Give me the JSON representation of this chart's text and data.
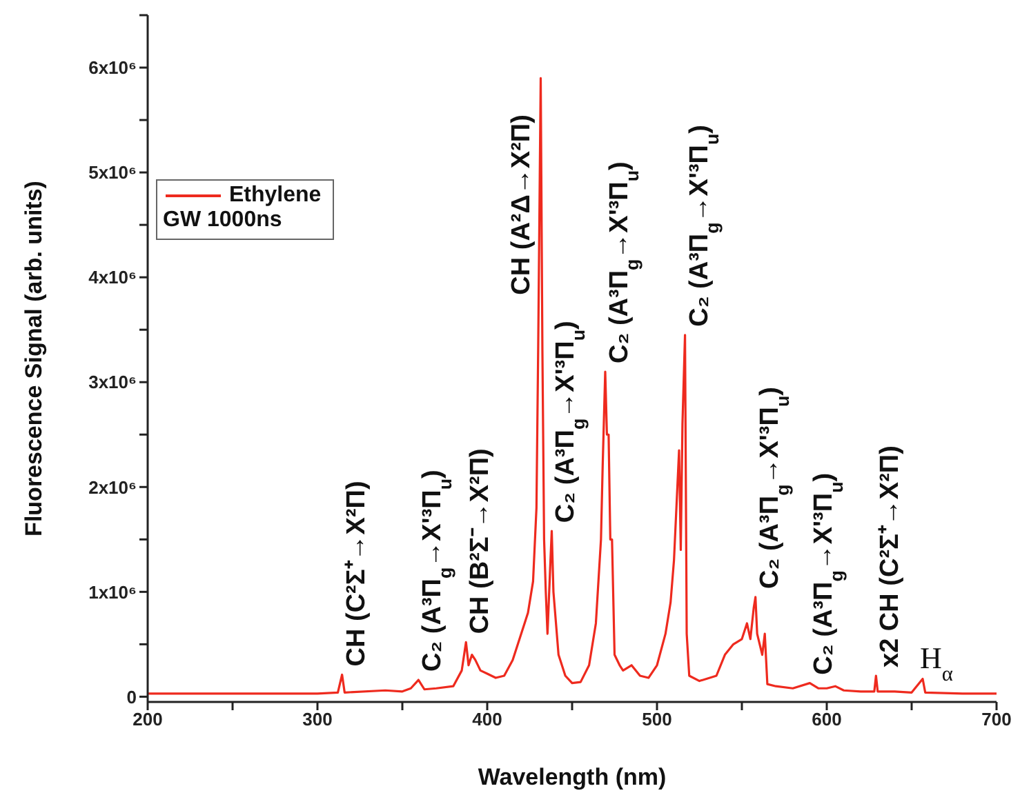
{
  "chart_data": {
    "type": "line",
    "xlabel": "Wavelength (nm)",
    "ylabel": "Fluorescence Signal (arb. units)",
    "legend": "top left",
    "legend_title": "GW 1000ns",
    "xlim": [
      200,
      700
    ],
    "ylim": [
      -50000,
      6500000
    ],
    "xticks": [
      200,
      {
        "value": 250,
        "label": null
      },
      300,
      {
        "value": 350,
        "label": null
      },
      400,
      {
        "value": 450,
        "label": null
      },
      500,
      {
        "value": 550,
        "label": null
      },
      600,
      {
        "value": 650,
        "label": null
      },
      700
    ],
    "yticks": [
      0,
      {
        "value": 500000,
        "label": null
      },
      {
        "value": 1000000,
        "label": "1x10⁶"
      },
      {
        "value": 1500000,
        "label": null
      },
      {
        "value": 2000000,
        "label": "2x10⁶"
      },
      {
        "value": 2500000,
        "label": null
      },
      {
        "value": 3000000,
        "label": "3x10⁶"
      },
      {
        "value": 3500000,
        "label": null
      },
      {
        "value": 4000000,
        "label": "4x10⁶"
      },
      {
        "value": 4500000,
        "label": null
      },
      {
        "value": 5000000,
        "label": "5x10⁶"
      },
      {
        "value": 5500000,
        "label": null
      },
      {
        "value": 6000000,
        "label": "6x10⁶"
      },
      {
        "value": 6500000,
        "label": null
      }
    ],
    "x": [
      200,
      300,
      312,
      314.5,
      316,
      340,
      350,
      355,
      359.5,
      363,
      370,
      380,
      385,
      387.5,
      389,
      391,
      393,
      396,
      400,
      405,
      410,
      415,
      420,
      424,
      427,
      429,
      430,
      431.5,
      432.5,
      433.5,
      434.5,
      435.5,
      437,
      438,
      439,
      442,
      446,
      450,
      455,
      460,
      464,
      467,
      468,
      469.5,
      470.5,
      471.5,
      472.5,
      473.5,
      475,
      478,
      480,
      485,
      490,
      495,
      500,
      505,
      508,
      510,
      512,
      513,
      514,
      515,
      516.5,
      517.5,
      519,
      525,
      535,
      540,
      545,
      550,
      553,
      555,
      557,
      558,
      559,
      562,
      563.5,
      565,
      570,
      580,
      590,
      595,
      600,
      605,
      610,
      620,
      628,
      629,
      630,
      640,
      650,
      656.5,
      658,
      680,
      700
    ],
    "series": [
      {
        "name": "Ethylene",
        "color": "#ee2a1e",
        "values": [
          30000,
          30000,
          40000,
          210000,
          40000,
          60000,
          50000,
          80000,
          160000,
          70000,
          80000,
          100000,
          250000,
          520000,
          300000,
          400000,
          350000,
          250000,
          220000,
          180000,
          200000,
          350000,
          600000,
          800000,
          1100000,
          1800000,
          3300000,
          5900000,
          3300000,
          1500000,
          1000000,
          600000,
          1200000,
          1580000,
          1000000,
          400000,
          200000,
          130000,
          140000,
          300000,
          700000,
          1500000,
          2200000,
          3100000,
          2500000,
          2500000,
          1500000,
          1500000,
          400000,
          300000,
          250000,
          300000,
          200000,
          180000,
          300000,
          600000,
          900000,
          1300000,
          2000000,
          2350000,
          1400000,
          2600000,
          3450000,
          600000,
          200000,
          150000,
          200000,
          400000,
          500000,
          550000,
          700000,
          550000,
          850000,
          950000,
          600000,
          400000,
          600000,
          120000,
          100000,
          80000,
          130000,
          80000,
          80000,
          100000,
          60000,
          50000,
          50000,
          200000,
          50000,
          50000,
          40000,
          170000,
          40000,
          30000,
          30000
        ]
      }
    ],
    "annotations": [
      {
        "text": "CH (C²Σ⁺→X²Π)",
        "x": 314.5,
        "y": 210000
      },
      {
        "text": "C₂ (A³Π$_{g}$→X'³Π$_{u}$)",
        "x": 359.5,
        "y": 160000
      },
      {
        "text": "CH (B²Σ⁻→X²Π)",
        "x": 387.5,
        "y": 520000
      },
      {
        "text": "CH (A²Δ→X²Π)",
        "x": 431.5,
        "y": 5900000
      },
      {
        "text": "C₂ (A³Π$_{g}$→X'³Π$_{u}$)",
        "x": 438,
        "y": 1580000
      },
      {
        "text": "C₂ (A³Π$_{g}$→X'³Π$_{u}$)",
        "x": 469.5,
        "y": 3100000
      },
      {
        "text": "C₂ (A³Π$_{g}$→X'³Π$_{u}$)",
        "x": 516.5,
        "y": 3450000
      },
      {
        "text": "C₂ (A³Π$_{g}$→X'³Π$_{u}$)",
        "x": 558,
        "y": 950000
      },
      {
        "text": "C₂ (A³Π$_{g}$→X'³Π$_{u}$)",
        "x": 590,
        "y": 130000
      },
      {
        "text": "x2 CH (C²Σ⁺→X²Π)",
        "x": 629,
        "y": 200000
      },
      {
        "text": "H$_{α}$",
        "x": 656.5,
        "y": 170000
      }
    ]
  }
}
